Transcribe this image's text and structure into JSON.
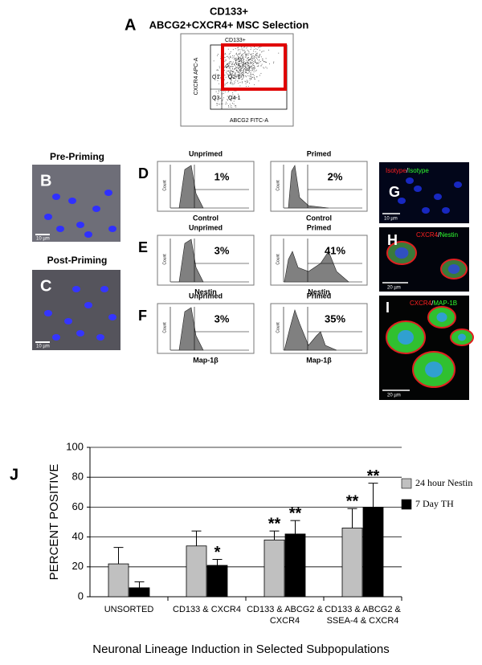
{
  "panel_a": {
    "letter": "A",
    "title_lines": [
      "CD133+",
      "ABCG2+CXCR4+ MSC Selection"
    ],
    "gate": "CD133+",
    "y_axis": "CXCR4 APC-A",
    "x_axis": "ABCG2 FITC-A",
    "quadrants": [
      "Q1",
      "Q2-1",
      "Q3",
      "Q4-1"
    ]
  },
  "panel_b": {
    "letter": "B",
    "title": "Pre-Priming",
    "scale": "10 µm"
  },
  "panel_c": {
    "letter": "C",
    "title": "Post-Priming",
    "scale": "10 µm"
  },
  "histograms": {
    "columns": [
      "Unprimed",
      "Primed"
    ],
    "y_axis": "Count",
    "rows": [
      {
        "letter": "D",
        "marker": "Control",
        "percents": [
          "1%",
          "2%"
        ]
      },
      {
        "letter": "E",
        "marker": "Nestin",
        "percents": [
          "3%",
          "41%"
        ]
      },
      {
        "letter": "F",
        "marker": "Map-1β",
        "percents": [
          "3%",
          "35%"
        ]
      }
    ]
  },
  "panel_g": {
    "letter": "G",
    "stain_red": "Isotype",
    "separator": "/",
    "stain_green": "Isotype",
    "scale": "10 µm"
  },
  "panel_h": {
    "letter": "H",
    "stain_red": "CXCR4",
    "separator": "/",
    "stain_green": "Nestin",
    "scale": "20 µm"
  },
  "panel_i": {
    "letter": "I",
    "stain_red": "CXCR4",
    "separator": "/",
    "stain_green": "MAP-1B",
    "scale": "20 µm"
  },
  "chart_data": {
    "type": "bar",
    "letter": "J",
    "y_label": "PERCENT POSITIVE",
    "x_label": "Neuronal Lineage Induction in Selected Subpopulations",
    "categories": [
      "UNSORTED",
      "CD133 & CXCR4",
      "CD133 & ABCG2 & CXCR4",
      "CD133 & ABCG2 & SSEA-4 & CXCR4"
    ],
    "series": [
      {
        "name": "24 hour Nestin",
        "color": "#c0c0c0",
        "values": [
          22,
          34,
          38,
          46
        ],
        "errors": [
          11,
          10,
          6,
          13
        ],
        "significance": [
          null,
          null,
          "**",
          "**"
        ]
      },
      {
        "name": "7 Day TH",
        "color": "#000000",
        "values": [
          6,
          21,
          42,
          60
        ],
        "errors": [
          4,
          4,
          9,
          16
        ],
        "significance": [
          null,
          "*",
          "**",
          "**"
        ]
      }
    ],
    "ylim": [
      0,
      100
    ],
    "yticks": [
      0,
      20,
      40,
      60,
      80,
      100
    ],
    "grid": true,
    "legend": "right"
  }
}
